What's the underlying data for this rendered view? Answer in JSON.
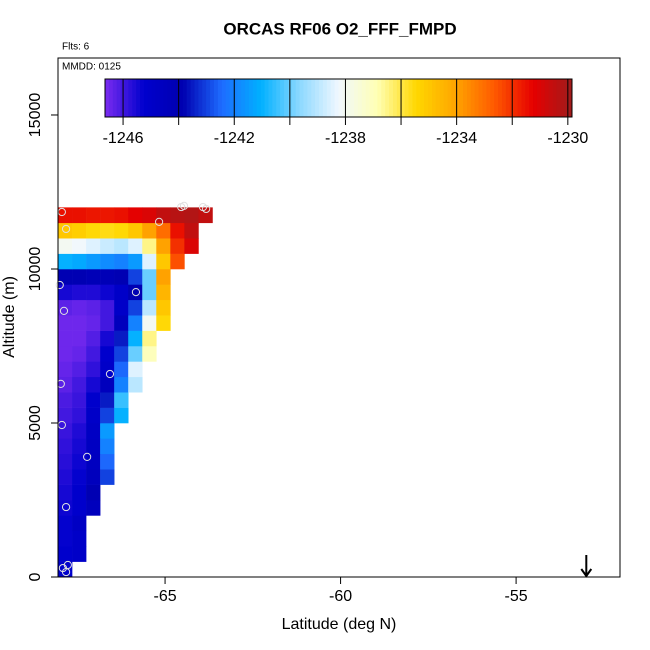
{
  "chart_data": {
    "type": "heatmap",
    "title": "ORCAS RF06 O2_FFF_FMPD",
    "annotations": [
      "Flts: 6",
      "MMDD: 0125"
    ],
    "x_label": "Latitude (deg N)",
    "y_label": "Altitude (m)",
    "xlim": [
      -68.05,
      -52.04
    ],
    "ylim": [
      0,
      16850
    ],
    "xticks": [
      -65,
      -60,
      -55
    ],
    "yticks": [
      0,
      5000,
      10000,
      15000
    ],
    "x": [
      -67.85,
      -67.45,
      -67.05,
      -66.65,
      -66.25,
      -65.85,
      -65.45,
      -65.05,
      -64.65,
      -64.25,
      -63.85
    ],
    "y": [
      250,
      750,
      1250,
      1750,
      2250,
      2750,
      3250,
      3750,
      4250,
      4750,
      5250,
      5750,
      6250,
      6750,
      7250,
      7750,
      8250,
      8750,
      9250,
      9750,
      10250,
      10750,
      11250,
      11750
    ],
    "z": [
      [
        -1245.2,
        null,
        null,
        null,
        null,
        null,
        null,
        null,
        null,
        null,
        null
      ],
      [
        -1245.2,
        -1245,
        null,
        null,
        null,
        null,
        null,
        null,
        null,
        null,
        null
      ],
      [
        -1245.3,
        -1245,
        null,
        null,
        null,
        null,
        null,
        null,
        null,
        null,
        null
      ],
      [
        -1245.3,
        -1244.8,
        null,
        null,
        null,
        null,
        null,
        null,
        null,
        null,
        null
      ],
      [
        -1245.4,
        -1245.2,
        -1244.5,
        null,
        null,
        null,
        null,
        null,
        null,
        null,
        null
      ],
      [
        -1245.5,
        -1245.2,
        -1244,
        null,
        null,
        null,
        null,
        null,
        null,
        null,
        null
      ],
      [
        -1245.6,
        -1245.3,
        -1244.5,
        -1243,
        null,
        null,
        null,
        null,
        null,
        null,
        null
      ],
      [
        -1245.7,
        -1245.4,
        -1244.6,
        -1242.5,
        null,
        null,
        null,
        null,
        null,
        null,
        null
      ],
      [
        -1245.8,
        -1245.5,
        -1244.7,
        -1242,
        null,
        null,
        null,
        null,
        null,
        null,
        null
      ],
      [
        -1245.9,
        -1245.6,
        -1244.8,
        -1241.5,
        null,
        null,
        null,
        null,
        null,
        null,
        null
      ],
      [
        -1246,
        -1245.8,
        -1245,
        -1243,
        -1241,
        null,
        null,
        null,
        null,
        null,
        null
      ],
      [
        -1246.1,
        -1245.9,
        -1245.2,
        -1243.5,
        -1240.5,
        null,
        null,
        null,
        null,
        null,
        null
      ],
      [
        -1246.3,
        -1246,
        -1245.5,
        -1244.5,
        -1242,
        -1239,
        null,
        null,
        null,
        null,
        null
      ],
      [
        -1246.4,
        -1246.2,
        -1245.8,
        -1245,
        -1242.5,
        -1238.5,
        null,
        null,
        null,
        null,
        null
      ],
      [
        -1246.5,
        -1246.4,
        -1246,
        -1245.2,
        -1243,
        -1240,
        -1237,
        null,
        null,
        null,
        null
      ],
      [
        -1246.5,
        -1246.5,
        -1246.2,
        -1245.5,
        -1243.5,
        -1241,
        -1236.5,
        null,
        null,
        null,
        null
      ],
      [
        -1246.5,
        -1246.5,
        -1246.4,
        -1246,
        -1244.5,
        -1242,
        -1238,
        -1235.5,
        null,
        null,
        null
      ],
      [
        -1246.3,
        -1246.4,
        -1246.3,
        -1246,
        -1245,
        -1243,
        -1239,
        -1235,
        null,
        null,
        null
      ],
      [
        -1245.5,
        -1245.6,
        -1245.6,
        -1245.4,
        -1245,
        -1244,
        -1240,
        -1234.5,
        null,
        null,
        null
      ],
      [
        -1244,
        -1244,
        -1244.2,
        -1244.2,
        -1244,
        -1243,
        -1240,
        -1234,
        null,
        null,
        null
      ],
      [
        -1241,
        -1241.2,
        -1241.5,
        -1241.8,
        -1242,
        -1241.5,
        -1238.5,
        -1235,
        -1232.5,
        null,
        null
      ],
      [
        -1238,
        -1238.2,
        -1238.5,
        -1238.8,
        -1239,
        -1238.5,
        -1236.5,
        -1234,
        -1232,
        -1231,
        null
      ],
      [
        -1235,
        -1235.2,
        -1235.5,
        -1235.6,
        -1235.5,
        -1235,
        -1234,
        -1233,
        -1231.5,
        -1230.5,
        null
      ],
      [
        -1231.5,
        -1231.5,
        -1231.6,
        -1231.6,
        -1231.5,
        -1231.2,
        -1231,
        -1230.5,
        -1230.3,
        -1230.2,
        -1230.5
      ]
    ],
    "zlim": [
      -1246.65,
      -1229.85
    ],
    "colorbar_ticks": [
      -1246,
      -1242,
      -1238,
      -1234,
      -1230
    ],
    "colorbar_breaks": [
      -1246,
      -1244,
      -1242,
      -1240,
      -1238,
      -1236,
      -1234,
      -1232,
      -1230
    ],
    "colormap": [
      "#7b2cf0",
      "#0000cd",
      "#0000b0",
      "#1e6cff",
      "#00b0ff",
      "#8cd8ff",
      "#f0f8ff",
      "#ffffb4",
      "#ffd700",
      "#ffa500",
      "#ff5a00",
      "#e60000",
      "#a01c1c"
    ],
    "points": {
      "x": [
        -67.94,
        -67.82,
        -68.0,
        -67.88,
        -67.97,
        -67.94,
        -67.82,
        -67.22,
        -66.57,
        -65.83,
        -65.17,
        -64.54,
        -64.46,
        -63.92,
        -63.83,
        -67.77,
        -67.91,
        -67.82
      ],
      "y": [
        11850,
        11300,
        9480,
        8640,
        6270,
        4935,
        2270,
        3900,
        6590,
        9250,
        11530,
        12010,
        12050,
        12010,
        11950,
        390,
        290,
        160
      ],
      "color": "#e0e0e0"
    },
    "arrow": {
      "x": -53
    }
  }
}
